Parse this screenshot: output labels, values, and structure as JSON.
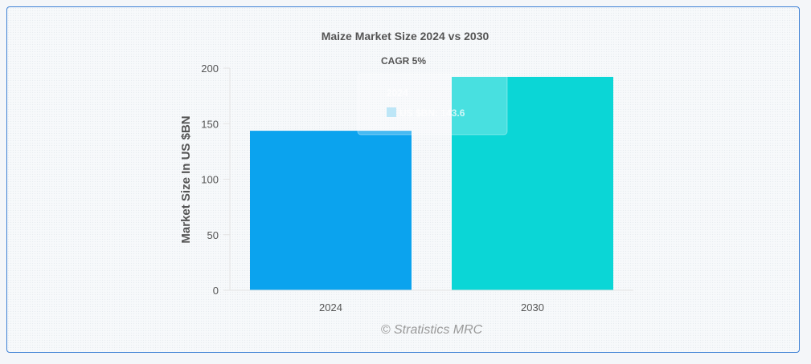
{
  "chart_data": {
    "type": "bar",
    "title": "Maize Market Size 2024 vs 2030",
    "subtitle": "CAGR 5%",
    "categories": [
      "2024",
      "2030"
    ],
    "series": [
      {
        "name": "US $BN",
        "values": [
          143.6,
          192.1
        ]
      }
    ],
    "bar_colors": [
      "#0ba3ee",
      "#0bd6d6"
    ],
    "ylabel": "Market Size In US $BN",
    "xlabel": "",
    "ylim": [
      0,
      200
    ],
    "yticks": [
      0,
      50,
      100,
      150,
      200
    ],
    "grid": false,
    "credit": "© Stratistics MRC",
    "tooltip": {
      "category": "2024",
      "series_label": "US $BN",
      "value_text": "143.6"
    }
  }
}
